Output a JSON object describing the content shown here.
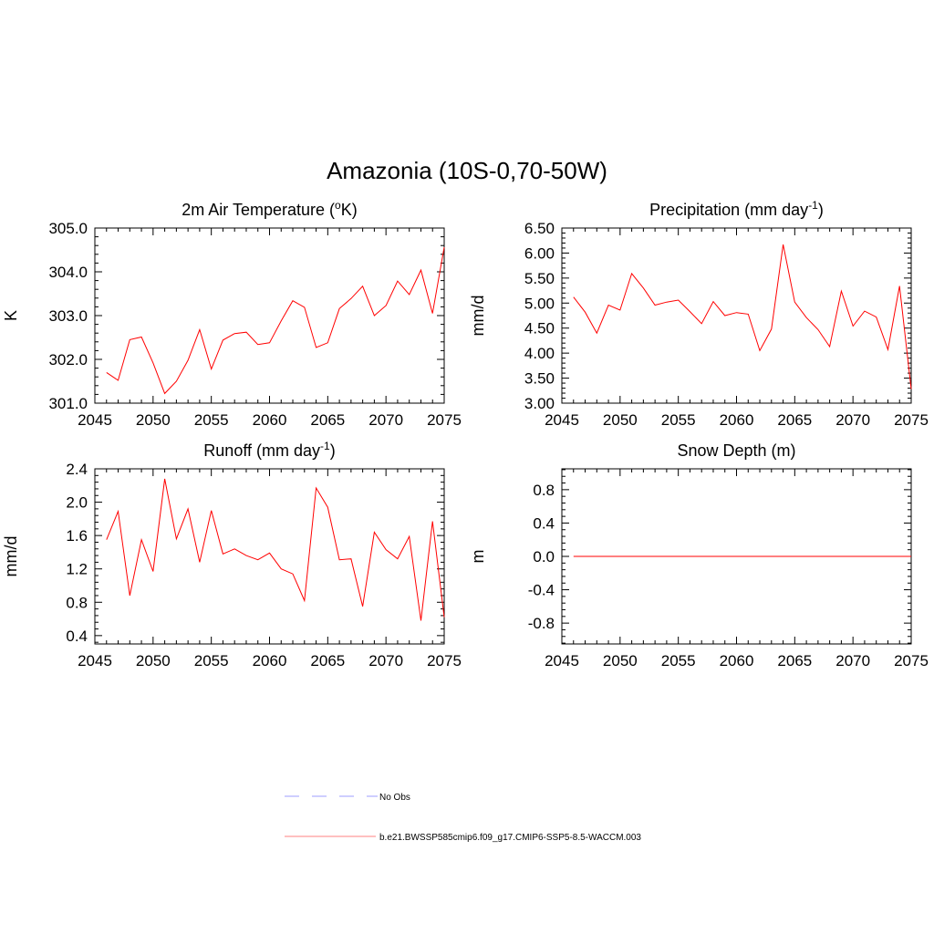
{
  "figure": {
    "title": "Amazonia (10S-0,70-50W)"
  },
  "colors": {
    "model_line": "#ff0000",
    "obs_line": "#b0b0ff"
  },
  "legend": [
    {
      "label": "No Obs",
      "style": "dashed",
      "color": "#b0b0ff"
    },
    {
      "label": "b.e21.BWSSP585cmip6.f09_g17.CMIP6-SSP5-8.5-WACCM.003",
      "style": "solid",
      "color": "#ff9a9a"
    }
  ],
  "chart_data": [
    {
      "id": "temp",
      "type": "line",
      "title": "2m Air Temperature (",
      "title_sup": "o",
      "title_end": "K)",
      "ylabel": "K",
      "xlim": [
        2045,
        2075
      ],
      "ylim": [
        301.0,
        305.0
      ],
      "xticks": [
        "2045",
        "2050",
        "2055",
        "2060",
        "2065",
        "2070",
        "2075"
      ],
      "yticks": [
        "301.0",
        "302.0",
        "303.0",
        "304.0",
        "305.0"
      ],
      "series": [
        {
          "name": "b.e21.BWSSP585cmip6.f09_g17.CMIP6-SSP5-8.5-WACCM.003",
          "x": [
            2046,
            2047,
            2048,
            2049,
            2050,
            2051,
            2052,
            2053,
            2054,
            2055,
            2056,
            2057,
            2058,
            2059,
            2060,
            2061,
            2062,
            2063,
            2064,
            2065,
            2066,
            2067,
            2068,
            2069,
            2070,
            2071,
            2072,
            2073,
            2074,
            2075
          ],
          "values": [
            301.7,
            301.52,
            302.45,
            302.51,
            301.92,
            301.22,
            301.5,
            301.98,
            302.68,
            301.78,
            302.44,
            302.59,
            302.62,
            302.34,
            302.38,
            302.88,
            303.34,
            303.19,
            302.27,
            302.38,
            303.16,
            303.39,
            303.67,
            303.0,
            303.23,
            303.79,
            303.48,
            304.04,
            303.05,
            304.56
          ]
        }
      ]
    },
    {
      "id": "precip",
      "type": "line",
      "title": "Precipitation (mm day",
      "title_sup": "-1",
      "title_end": ")",
      "ylabel": "mm/d",
      "xlim": [
        2045,
        2075
      ],
      "ylim": [
        3.0,
        6.5
      ],
      "xticks": [
        "2045",
        "2050",
        "2055",
        "2060",
        "2065",
        "2070",
        "2075"
      ],
      "yticks": [
        "3.00",
        "3.50",
        "4.00",
        "4.50",
        "5.00",
        "5.50",
        "6.00",
        "6.50"
      ],
      "series": [
        {
          "name": "b.e21.BWSSP585cmip6.f09_g17.CMIP6-SSP5-8.5-WACCM.003",
          "x": [
            2046,
            2047,
            2048,
            2049,
            2050,
            2051,
            2052,
            2053,
            2054,
            2055,
            2056,
            2057,
            2058,
            2059,
            2060,
            2061,
            2062,
            2063,
            2064,
            2065,
            2066,
            2067,
            2068,
            2069,
            2070,
            2071,
            2072,
            2073,
            2074,
            2075
          ],
          "values": [
            5.12,
            4.82,
            4.4,
            4.96,
            4.86,
            5.59,
            5.3,
            4.96,
            5.02,
            5.06,
            4.83,
            4.59,
            5.03,
            4.75,
            4.81,
            4.78,
            4.05,
            4.48,
            6.17,
            5.02,
            4.71,
            4.47,
            4.13,
            5.24,
            4.54,
            4.84,
            4.72,
            4.07,
            5.34,
            3.28
          ]
        }
      ]
    },
    {
      "id": "runoff",
      "type": "line",
      "title": "Runoff (mm day",
      "title_sup": "-1",
      "title_end": ")",
      "ylabel": "mm/d",
      "xlim": [
        2045,
        2075
      ],
      "ylim": [
        0.3,
        2.4
      ],
      "xticks": [
        "2045",
        "2050",
        "2055",
        "2060",
        "2065",
        "2070",
        "2075"
      ],
      "yticks": [
        "0.4",
        "0.8",
        "1.2",
        "1.6",
        "2.0",
        "2.4"
      ],
      "series": [
        {
          "name": "b.e21.BWSSP585cmip6.f09_g17.CMIP6-SSP5-8.5-WACCM.003",
          "x": [
            2046,
            2047,
            2048,
            2049,
            2050,
            2051,
            2052,
            2053,
            2054,
            2055,
            2056,
            2057,
            2058,
            2059,
            2060,
            2061,
            2062,
            2063,
            2064,
            2065,
            2066,
            2067,
            2068,
            2069,
            2070,
            2071,
            2072,
            2073,
            2074,
            2075
          ],
          "values": [
            1.55,
            1.89,
            0.88,
            1.55,
            1.17,
            2.28,
            1.56,
            1.92,
            1.28,
            1.9,
            1.38,
            1.44,
            1.36,
            1.31,
            1.39,
            1.2,
            1.14,
            0.82,
            2.17,
            1.94,
            1.31,
            1.32,
            0.75,
            1.64,
            1.43,
            1.32,
            1.59,
            0.58,
            1.77,
            0.62
          ]
        }
      ]
    },
    {
      "id": "snow",
      "type": "line",
      "title": "Snow Depth (m)",
      "title_sup": "",
      "title_end": "",
      "ylabel": "m",
      "xlim": [
        2045,
        2075
      ],
      "ylim": [
        -1.05,
        1.05
      ],
      "xticks": [
        "2045",
        "2050",
        "2055",
        "2060",
        "2065",
        "2070",
        "2075"
      ],
      "yticks": [
        "-0.8",
        "-0.4",
        "0.0",
        "0.4",
        "0.8"
      ],
      "series": [
        {
          "name": "b.e21.BWSSP585cmip6.f09_g17.CMIP6-SSP5-8.5-WACCM.003",
          "x": [
            2046,
            2047,
            2048,
            2049,
            2050,
            2051,
            2052,
            2053,
            2054,
            2055,
            2056,
            2057,
            2058,
            2059,
            2060,
            2061,
            2062,
            2063,
            2064,
            2065,
            2066,
            2067,
            2068,
            2069,
            2070,
            2071,
            2072,
            2073,
            2074,
            2075
          ],
          "values": [
            0,
            0,
            0,
            0,
            0,
            0,
            0,
            0,
            0,
            0,
            0,
            0,
            0,
            0,
            0,
            0,
            0,
            0,
            0,
            0,
            0,
            0,
            0,
            0,
            0,
            0,
            0,
            0,
            0,
            0
          ]
        }
      ]
    }
  ]
}
